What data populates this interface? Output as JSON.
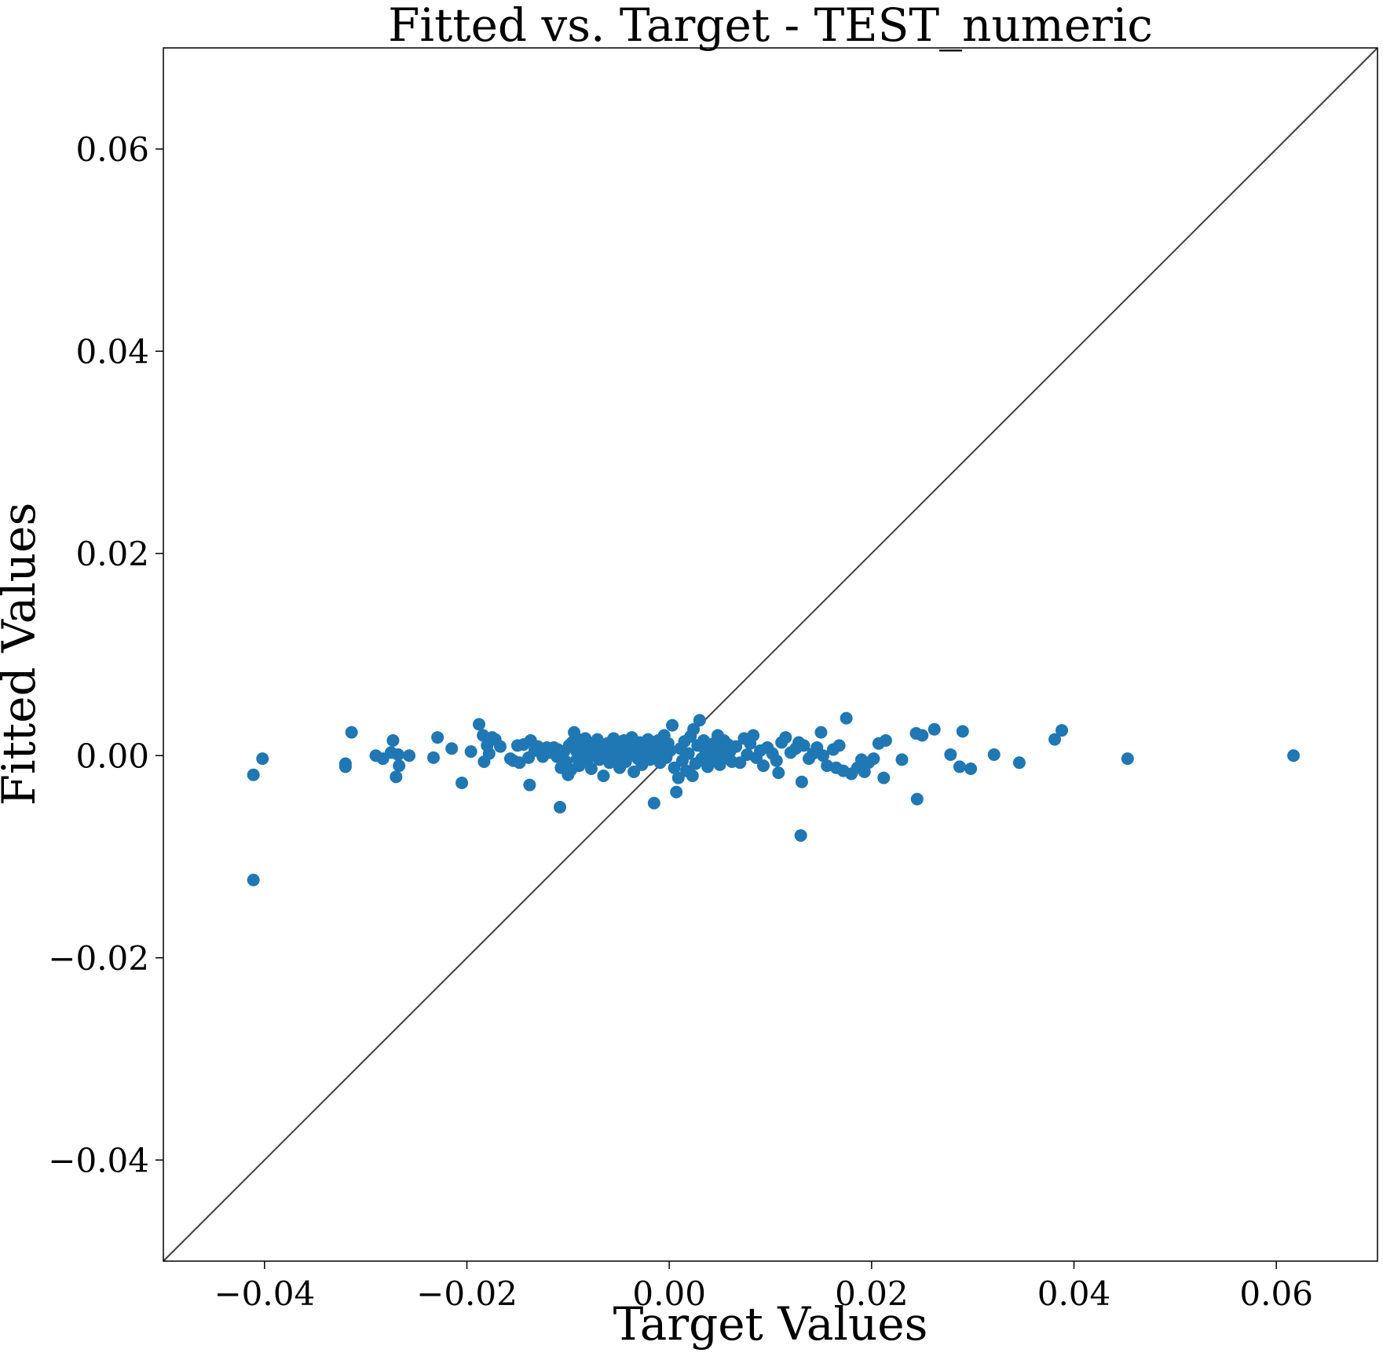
{
  "chart_data": {
    "type": "scatter",
    "title": "Fitted vs. Target - TEST_numeric",
    "xlabel": "Target Values",
    "ylabel": "Fitted Values",
    "xlim": [
      -0.05,
      0.07
    ],
    "ylim": [
      -0.05,
      0.07
    ],
    "xticks": [
      -0.04,
      -0.02,
      0.0,
      0.02,
      0.04,
      0.06
    ],
    "yticks": [
      -0.04,
      -0.02,
      0.0,
      0.02,
      0.04,
      0.06
    ],
    "xtick_labels": [
      "−0.04",
      "−0.02",
      "0.00",
      "0.02",
      "0.04",
      "0.06"
    ],
    "ytick_labels": [
      "−0.04",
      "−0.02",
      "0.00",
      "0.02",
      "0.04",
      "0.06"
    ],
    "grid": false,
    "reference_line": "y = x",
    "colors": {
      "points": "#1f77b4",
      "reference_line": "#3f3f3f",
      "axes": "#000000"
    },
    "series": [
      {
        "points": [
          [
            -0.0411,
            -0.0123
          ],
          [
            -0.0411,
            -0.0019
          ],
          [
            -0.0402,
            -0.0003
          ],
          [
            -0.032,
            -0.0008
          ],
          [
            -0.032,
            -0.0011
          ],
          [
            -0.0314,
            0.0023
          ],
          [
            -0.029,
            0.0
          ],
          [
            -0.0283,
            -0.0003
          ],
          [
            -0.0273,
            0.0015
          ],
          [
            -0.0275,
            0.0003
          ],
          [
            -0.027,
            -0.0021
          ],
          [
            -0.0268,
            0.0001
          ],
          [
            -0.0267,
            -0.001
          ],
          [
            -0.0257,
            0.0
          ],
          [
            -0.0233,
            -0.0002
          ],
          [
            -0.0229,
            0.0018
          ],
          [
            -0.0215,
            0.0007
          ],
          [
            -0.0205,
            -0.0027
          ],
          [
            -0.0196,
            0.0004
          ],
          [
            -0.0188,
            0.0031
          ],
          [
            -0.0184,
            0.002
          ],
          [
            -0.0183,
            -0.0006
          ],
          [
            -0.018,
            0.001
          ],
          [
            -0.0178,
            0.0002
          ],
          [
            -0.0175,
            0.0018
          ],
          [
            -0.0172,
            0.0016
          ],
          [
            -0.0167,
            0.0009
          ],
          [
            -0.0157,
            -0.0003
          ],
          [
            -0.0154,
            -0.0005
          ],
          [
            -0.015,
            0.001
          ],
          [
            -0.0148,
            -0.0007
          ],
          [
            -0.0144,
            0.0011
          ],
          [
            -0.0139,
            -0.0002
          ],
          [
            -0.0138,
            -0.0029
          ],
          [
            -0.0137,
            0.0015
          ],
          [
            -0.0133,
            0.0005
          ],
          [
            -0.013,
            0.0009
          ],
          [
            -0.0125,
            -0.0001
          ],
          [
            -0.0121,
            0.0008
          ],
          [
            -0.0118,
            0.0003
          ],
          [
            -0.0114,
            0.0008
          ],
          [
            -0.0111,
            -0.0001
          ],
          [
            -0.011,
            0.0006
          ],
          [
            -0.0108,
            -0.0051
          ],
          [
            -0.0107,
            -0.0012
          ],
          [
            -0.0104,
            0.0004
          ],
          [
            -0.0102,
            -0.0006
          ],
          [
            -0.01,
            -0.0019
          ],
          [
            -0.0099,
            0.001
          ],
          [
            -0.0097,
            -0.0014
          ],
          [
            -0.0096,
            0.0013
          ],
          [
            -0.0094,
            0.0023
          ],
          [
            -0.0092,
            0.0005
          ],
          [
            -0.0091,
            -0.0003
          ],
          [
            -0.009,
            0.0016
          ],
          [
            -0.0089,
            -0.001
          ],
          [
            -0.0087,
            0.0009
          ],
          [
            -0.0085,
            0.0002
          ],
          [
            -0.0083,
            0.0017
          ],
          [
            -0.0081,
            -0.0005
          ],
          [
            -0.0079,
            0.0007
          ],
          [
            -0.0077,
            -0.0013
          ],
          [
            -0.0075,
            0.0011
          ],
          [
            -0.0073,
            0.0001
          ],
          [
            -0.0071,
            0.0016
          ],
          [
            -0.0069,
            -0.0004
          ],
          [
            -0.0067,
            0.0008
          ],
          [
            -0.0065,
            -0.002
          ],
          [
            -0.0063,
            0.0003
          ],
          [
            -0.0061,
            0.0012
          ],
          [
            -0.0059,
            -0.0007
          ],
          [
            -0.0057,
            0.0005
          ],
          [
            -0.0055,
            0.0017
          ],
          [
            -0.0053,
            -0.0001
          ],
          [
            -0.0051,
            0.001
          ],
          [
            -0.0049,
            -0.0012
          ],
          [
            -0.0047,
            0.0004
          ],
          [
            -0.0045,
            0.0015
          ],
          [
            -0.0043,
            -0.0006
          ],
          [
            -0.0041,
            0.0009
          ],
          [
            -0.0039,
            0.0002
          ],
          [
            -0.0037,
            0.0018
          ],
          [
            -0.0035,
            -0.0016
          ],
          [
            -0.0033,
            0.0006
          ],
          [
            -0.0031,
            -0.0003
          ],
          [
            -0.0029,
            0.0013
          ],
          [
            -0.0027,
            -0.0009
          ],
          [
            -0.0025,
            0.0008
          ],
          [
            -0.0023,
            0.0001
          ],
          [
            -0.0021,
            0.0016
          ],
          [
            -0.0019,
            -0.0004
          ],
          [
            -0.0017,
            0.0011
          ],
          [
            -0.0015,
            -0.0047
          ],
          [
            -0.0013,
            0.0003
          ],
          [
            -0.0011,
            0.0015
          ],
          [
            -0.0009,
            -0.0007
          ],
          [
            -0.0007,
            0.0009
          ],
          [
            -0.0005,
            0.002
          ],
          [
            -0.0003,
            -0.0002
          ],
          [
            -0.0001,
            0.0012
          ],
          [
            0.0001,
            0.0005
          ],
          [
            0.0003,
            0.003
          ],
          [
            0.0005,
            -0.0012
          ],
          [
            0.0007,
            -0.0036
          ],
          [
            0.0009,
            -0.0022
          ],
          [
            0.0011,
            0.0007
          ],
          [
            0.0013,
            -0.0005
          ],
          [
            0.0015,
            0.0014
          ],
          [
            0.0017,
            -0.0015
          ],
          [
            0.0019,
            0.0002
          ],
          [
            0.0021,
            0.0019
          ],
          [
            0.0023,
            -0.002
          ],
          [
            0.0024,
            0.0026
          ],
          [
            0.0026,
            -0.0008
          ],
          [
            0.0028,
            0.001
          ],
          [
            0.003,
            0.0035
          ],
          [
            0.0032,
            -0.0003
          ],
          [
            0.0034,
            0.0015
          ],
          [
            0.0036,
            0.0004
          ],
          [
            0.0038,
            -0.0011
          ],
          [
            0.004,
            0.0008
          ],
          [
            0.0042,
            -0.0004
          ],
          [
            0.0044,
            0.0012
          ],
          [
            0.0046,
            0.0001
          ],
          [
            0.0048,
            0.002
          ],
          [
            0.005,
            -0.0009
          ],
          [
            0.0052,
            0.0006
          ],
          [
            0.0054,
            0.0015
          ],
          [
            0.0056,
            -0.0002
          ],
          [
            0.0058,
            0.0011
          ],
          [
            0.006,
            0.0004
          ],
          [
            0.0062,
            -0.0006
          ],
          [
            0.0066,
            0.0009
          ],
          [
            0.007,
            -0.0007
          ],
          [
            0.0074,
            0.0017
          ],
          [
            0.0077,
            0.0001
          ],
          [
            0.008,
            0.0012
          ],
          [
            0.0083,
            0.002
          ],
          [
            0.0086,
            -0.0002
          ],
          [
            0.009,
            0.0005
          ],
          [
            0.0093,
            -0.001
          ],
          [
            0.0097,
            0.0008
          ],
          [
            0.0102,
            0.0002
          ],
          [
            0.0106,
            -0.0005
          ],
          [
            0.0108,
            -0.0017
          ],
          [
            0.0111,
            0.0013
          ],
          [
            0.0115,
            0.0018
          ],
          [
            0.012,
            0.0003
          ],
          [
            0.0125,
            0.0007
          ],
          [
            0.0128,
            0.0013
          ],
          [
            0.013,
            -0.0079
          ],
          [
            0.0131,
            -0.0026
          ],
          [
            0.0133,
            0.001
          ],
          [
            0.0138,
            -0.0003
          ],
          [
            0.0142,
            0.0002
          ],
          [
            0.0146,
            0.0008
          ],
          [
            0.015,
            0.0023
          ],
          [
            0.0152,
            0.0
          ],
          [
            0.0156,
            -0.001
          ],
          [
            0.0162,
            0.0006
          ],
          [
            0.0165,
            -0.0012
          ],
          [
            0.0168,
            0.001
          ],
          [
            0.0172,
            -0.0015
          ],
          [
            0.0175,
            0.0037
          ],
          [
            0.018,
            -0.0018
          ],
          [
            0.0186,
            -0.0012
          ],
          [
            0.019,
            -0.0004
          ],
          [
            0.0193,
            -0.0016
          ],
          [
            0.0197,
            -0.0007
          ],
          [
            0.0202,
            -0.0003
          ],
          [
            0.0207,
            0.0012
          ],
          [
            0.0212,
            -0.0022
          ],
          [
            0.0214,
            0.0015
          ],
          [
            0.023,
            -0.0004
          ],
          [
            0.0244,
            0.0022
          ],
          [
            0.0245,
            -0.0043
          ],
          [
            0.025,
            0.002
          ],
          [
            0.0262,
            0.0026
          ],
          [
            0.0278,
            0.0001
          ],
          [
            0.0287,
            -0.0011
          ],
          [
            0.029,
            0.0024
          ],
          [
            0.0298,
            -0.0013
          ],
          [
            0.0321,
            0.0001
          ],
          [
            0.0346,
            -0.0007
          ],
          [
            0.0381,
            0.0016
          ],
          [
            0.0388,
            0.0025
          ],
          [
            0.0453,
            -0.0003
          ],
          [
            0.0617,
            0.0
          ]
        ]
      }
    ]
  }
}
